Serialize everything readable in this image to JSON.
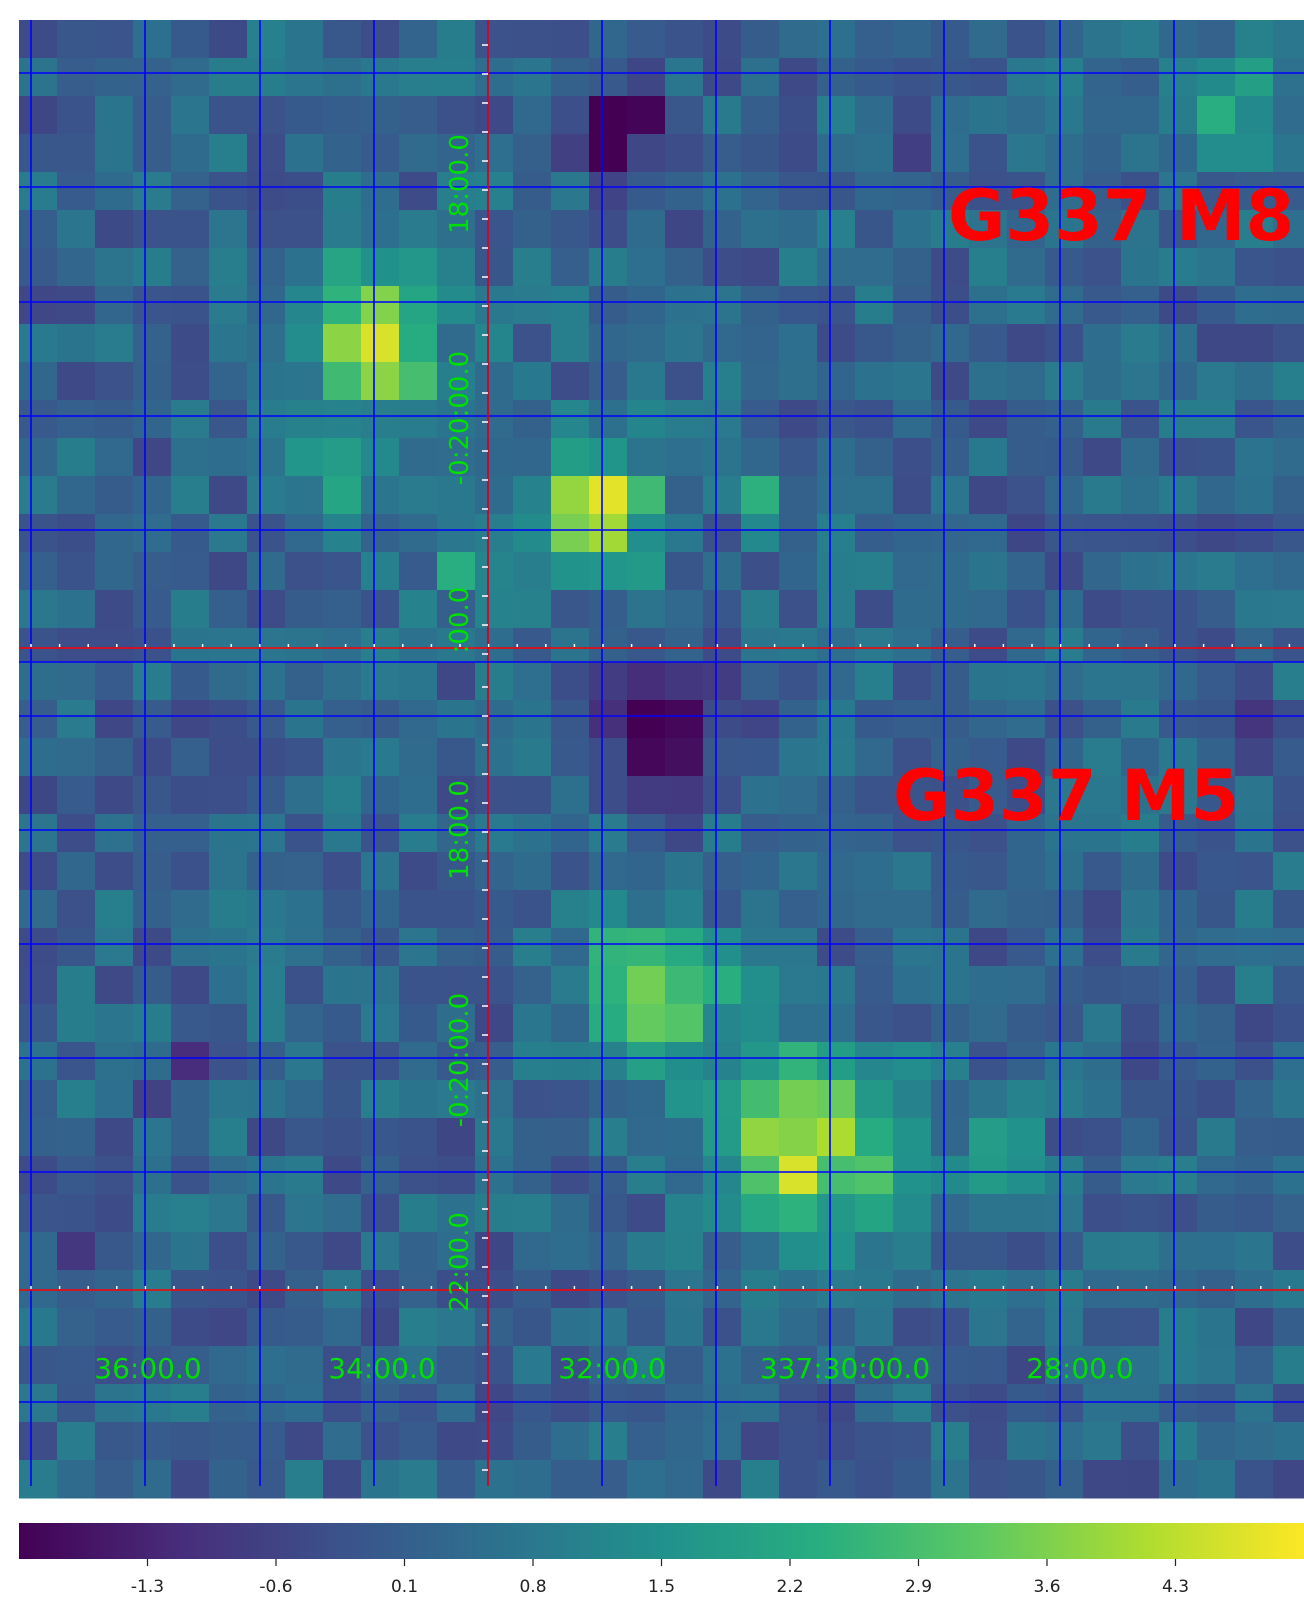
{
  "panels": [
    {
      "name": "G337 M8",
      "lat_labels": [
        "18:00.0",
        "-0:20:00.0",
        ":00.0"
      ],
      "lon_labels": []
    },
    {
      "name": "G337 M5",
      "lat_labels": [
        "18:00.0",
        "-0:20:00.0",
        "22:00.0"
      ],
      "lon_labels": [
        "36:00.0",
        "34:00.0",
        "32:00.0",
        "337:30:00.0",
        "28:00.0"
      ]
    }
  ],
  "colorbar": {
    "colormap": "viridis",
    "ticks": [
      "-1.3",
      "-0.6",
      "0.1",
      "0.8",
      "1.5",
      "2.2",
      "2.9",
      "3.6",
      "4.3"
    ],
    "min": -2.0,
    "max": 5.0
  },
  "colors": {
    "panel_label": "#ff0000",
    "axis_label": "#00e000",
    "grid": "#0000ff",
    "axis_line": "#ff0000"
  }
}
